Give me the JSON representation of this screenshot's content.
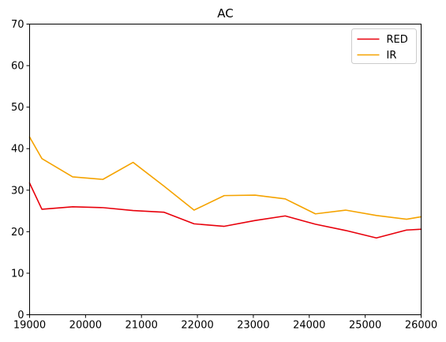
{
  "chart_data": {
    "type": "line",
    "title": "AC",
    "xlabel": "",
    "ylabel": "",
    "xlim": [
      19000,
      26000
    ],
    "ylim": [
      0,
      70
    ],
    "xticks": [
      19000,
      20000,
      21000,
      22000,
      23000,
      24000,
      25000,
      26000
    ],
    "yticks": [
      0,
      10,
      20,
      30,
      40,
      50,
      60,
      70
    ],
    "grid": false,
    "legend_position": "top-right",
    "series": [
      {
        "name": "RED",
        "color": "#e8000b",
        "x": [
          19000,
          19220,
          19770,
          20310,
          20850,
          21400,
          21940,
          22480,
          23030,
          23570,
          24110,
          24650,
          25200,
          25740,
          26000
        ],
        "y": [
          31.7,
          25.4,
          26.0,
          25.8,
          25.1,
          24.7,
          21.9,
          21.3,
          22.7,
          23.8,
          21.8,
          20.3,
          18.5,
          20.4,
          20.6
        ]
      },
      {
        "name": "IR",
        "color": "#f5a300",
        "x": [
          19000,
          19220,
          19770,
          20310,
          20850,
          21400,
          21940,
          22480,
          23030,
          23570,
          24110,
          24650,
          25200,
          25740,
          26000
        ],
        "y": [
          42.8,
          37.6,
          33.2,
          32.6,
          36.7,
          31.0,
          25.2,
          28.7,
          28.8,
          27.9,
          24.3,
          25.2,
          23.9,
          23.0,
          23.6
        ]
      }
    ]
  }
}
